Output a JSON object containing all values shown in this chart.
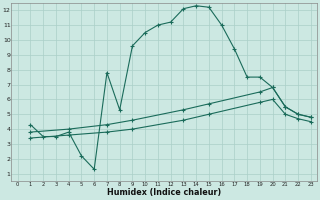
{
  "xlabel": "Humidex (Indice chaleur)",
  "background_color": "#cce8e2",
  "grid_color": "#aacfc8",
  "line_color": "#1a6b5a",
  "xlim": [
    -0.5,
    23.5
  ],
  "ylim": [
    0.5,
    12.5
  ],
  "xticks": [
    0,
    1,
    2,
    3,
    4,
    5,
    6,
    7,
    8,
    9,
    10,
    11,
    12,
    13,
    14,
    15,
    16,
    17,
    18,
    19,
    20,
    21,
    22,
    23
  ],
  "yticks": [
    1,
    2,
    3,
    4,
    5,
    6,
    7,
    8,
    9,
    10,
    11,
    12
  ],
  "curve_x": [
    1,
    2,
    3,
    4,
    5,
    6,
    7,
    8,
    9,
    10,
    11,
    12,
    13,
    14,
    15,
    16,
    17,
    18,
    19,
    20,
    21,
    22,
    23
  ],
  "curve_y": [
    4.3,
    3.5,
    3.5,
    3.8,
    2.2,
    1.3,
    7.8,
    5.3,
    9.6,
    10.5,
    11.0,
    11.2,
    12.1,
    12.3,
    12.2,
    11.0,
    9.4,
    7.5,
    7.5,
    6.8,
    5.5,
    5.0,
    4.8
  ],
  "upper_x": [
    1,
    4,
    7,
    9,
    13,
    15,
    19,
    20,
    21,
    22,
    23
  ],
  "upper_y": [
    3.8,
    4.0,
    4.3,
    4.6,
    5.3,
    5.7,
    6.5,
    6.8,
    5.5,
    5.0,
    4.8
  ],
  "lower_x": [
    1,
    4,
    7,
    9,
    13,
    15,
    19,
    20,
    21,
    22,
    23
  ],
  "lower_y": [
    3.4,
    3.6,
    3.8,
    4.0,
    4.6,
    5.0,
    5.8,
    6.0,
    5.0,
    4.7,
    4.5
  ]
}
